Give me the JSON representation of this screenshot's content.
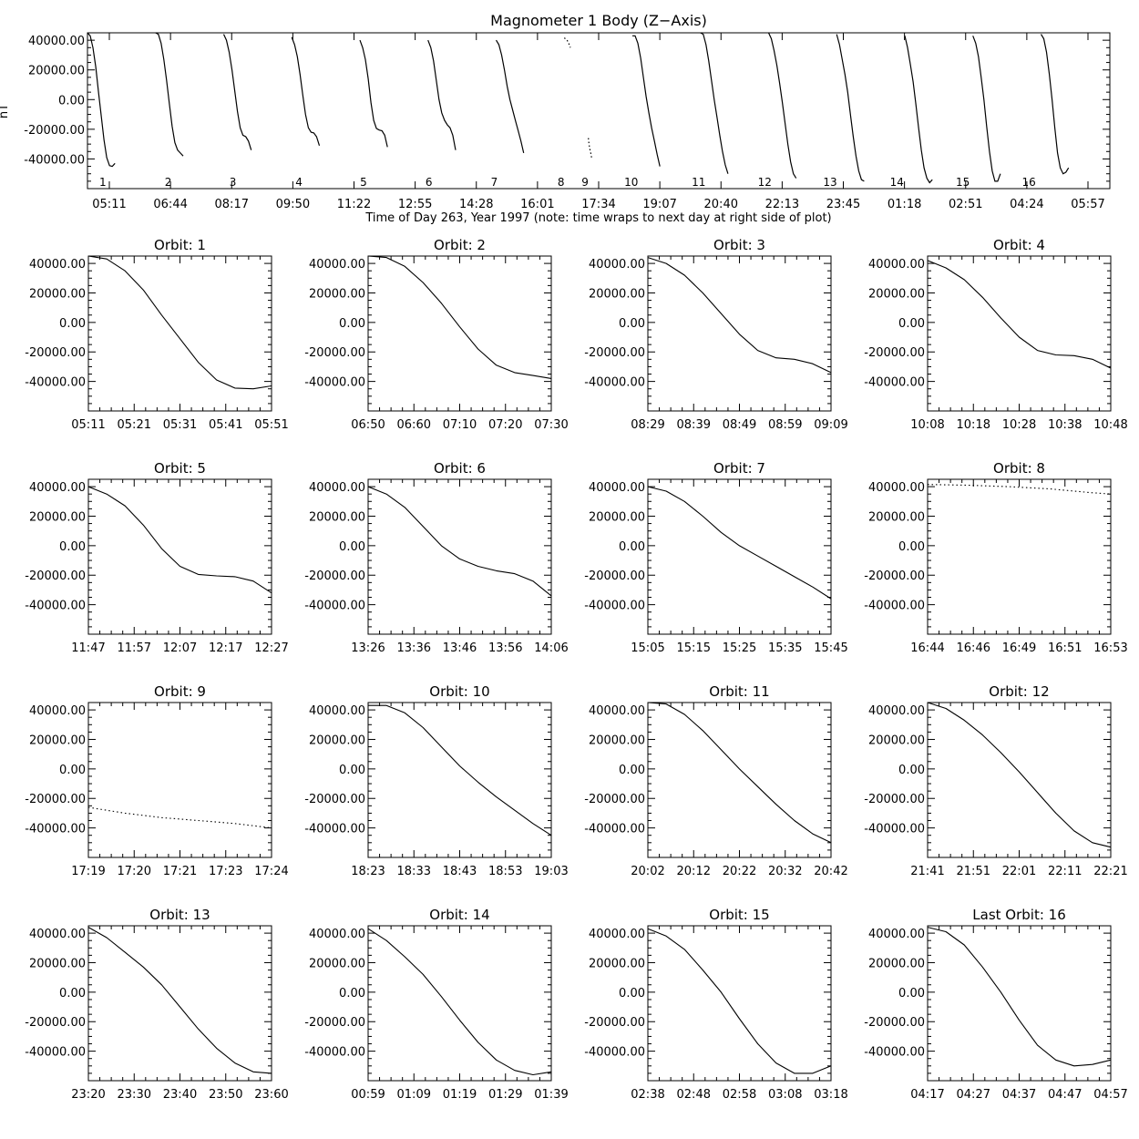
{
  "chart_data": [
    {
      "type": "line",
      "title": "Magnometer 1 Body (Z−Axis)",
      "ylabel": "nT",
      "xlabel": "Time of Day 263, Year 1997 (note: time wraps to next day at right side of plot)",
      "x_tick_labels": [
        "05:11",
        "06:44",
        "08:17",
        "09:50",
        "11:22",
        "12:55",
        "14:28",
        "16:01",
        "17:34",
        "19:07",
        "20:40",
        "22:13",
        "23:45",
        "01:18",
        "02:51",
        "04:24",
        "05:57"
      ],
      "y_tick_labels": [
        "40000.00",
        "20000.00",
        "0.00",
        "-20000.00",
        "-40000.00"
      ],
      "y_ticks": [
        40000,
        20000,
        0,
        -20000,
        -40000
      ],
      "ylim": [
        -60000,
        45000
      ],
      "x_range_minutes": [
        311,
        1797
      ],
      "orbit_labels": [
        {
          "label": "1",
          "x": 315
        },
        {
          "label": "2",
          "x": 410
        },
        {
          "label": "3",
          "x": 504
        },
        {
          "label": "4",
          "x": 600
        },
        {
          "label": "5",
          "x": 694
        },
        {
          "label": "6",
          "x": 789
        },
        {
          "label": "7",
          "x": 884
        },
        {
          "label": "8",
          "x": 981
        },
        {
          "label": "9",
          "x": 1016
        },
        {
          "label": "10",
          "x": 1078
        },
        {
          "label": "11",
          "x": 1176
        },
        {
          "label": "12",
          "x": 1272
        },
        {
          "label": "13",
          "x": 1367
        },
        {
          "label": "14",
          "x": 1464
        },
        {
          "label": "15",
          "x": 1560
        },
        {
          "label": "16",
          "x": 1656
        }
      ]
    },
    {
      "type": "line",
      "title": "Orbit:  1",
      "x_tick_labels": [
        "05:11",
        "05:21",
        "05:31",
        "05:41",
        "05:51"
      ],
      "xlim": [
        311,
        351
      ],
      "x": [
        311,
        315,
        319,
        323,
        327,
        331,
        335,
        339,
        343,
        347,
        351
      ],
      "y": [
        45000,
        43000,
        35000,
        22000,
        5000,
        -11000,
        -27000,
        -39000,
        -44500,
        -45000,
        -43000
      ]
    },
    {
      "type": "line",
      "title": "Orbit:  2",
      "x_tick_labels": [
        "06:50",
        "06:60",
        "07:10",
        "07:20",
        "07:30"
      ],
      "xlim": [
        410,
        450
      ],
      "x": [
        410,
        414,
        418,
        422,
        426,
        430,
        434,
        438,
        442,
        446,
        450
      ],
      "y": [
        45000,
        44000,
        38000,
        27000,
        13000,
        -3000,
        -18000,
        -29000,
        -34000,
        -36000,
        -38000
      ]
    },
    {
      "type": "line",
      "title": "Orbit:  3",
      "x_tick_labels": [
        "08:29",
        "08:39",
        "08:49",
        "08:59",
        "09:09"
      ],
      "xlim": [
        509,
        549
      ],
      "x": [
        509,
        513,
        517,
        521,
        525,
        529,
        533,
        537,
        541,
        545,
        549
      ],
      "y": [
        44000,
        40000,
        32000,
        20000,
        6000,
        -8000,
        -19000,
        -24000,
        -25000,
        -28000,
        -34000
      ]
    },
    {
      "type": "line",
      "title": "Orbit:  4",
      "x_tick_labels": [
        "10:08",
        "10:18",
        "10:28",
        "10:38",
        "10:48"
      ],
      "xlim": [
        608,
        648
      ],
      "x": [
        608,
        612,
        616,
        620,
        624,
        628,
        632,
        636,
        640,
        644,
        648
      ],
      "y": [
        42000,
        37000,
        29000,
        17000,
        3000,
        -10000,
        -19000,
        -22000,
        -22500,
        -25000,
        -31000
      ]
    },
    {
      "type": "line",
      "title": "Orbit:  5",
      "x_tick_labels": [
        "11:47",
        "11:57",
        "12:07",
        "12:17",
        "12:27"
      ],
      "xlim": [
        707,
        747
      ],
      "x": [
        707,
        711,
        715,
        719,
        723,
        727,
        731,
        735,
        739,
        743,
        747
      ],
      "y": [
        40000,
        35000,
        27000,
        14000,
        -2000,
        -14000,
        -19500,
        -20500,
        -21000,
        -24000,
        -32000
      ]
    },
    {
      "type": "line",
      "title": "Orbit:  6",
      "x_tick_labels": [
        "13:26",
        "13:36",
        "13:46",
        "13:56",
        "14:06"
      ],
      "xlim": [
        806,
        846
      ],
      "x": [
        806,
        810,
        814,
        818,
        822,
        826,
        830,
        834,
        838,
        842,
        846
      ],
      "y": [
        40000,
        35000,
        26000,
        13000,
        0,
        -9000,
        -14000,
        -17000,
        -19000,
        -24000,
        -34000
      ]
    },
    {
      "type": "line",
      "title": "Orbit:  7",
      "x_tick_labels": [
        "15:05",
        "15:15",
        "15:25",
        "15:35",
        "15:45"
      ],
      "xlim": [
        905,
        945
      ],
      "x": [
        905,
        909,
        913,
        917,
        921,
        925,
        929,
        933,
        937,
        941,
        945
      ],
      "y": [
        40000,
        37000,
        30000,
        20000,
        9000,
        0,
        -7000,
        -14000,
        -21000,
        -28000,
        -36000
      ]
    },
    {
      "type": "line",
      "title": "Orbit:  8",
      "dotted": true,
      "x_tick_labels": [
        "16:44",
        "16:46",
        "16:49",
        "16:51",
        "16:53"
      ],
      "xlim": [
        1004,
        1013
      ],
      "x": [
        1004,
        1006,
        1008,
        1010,
        1012,
        1013
      ],
      "y": [
        41500,
        41000,
        40000,
        38500,
        36000,
        35000
      ]
    },
    {
      "type": "line",
      "title": "Orbit:  9",
      "dotted": true,
      "x_tick_labels": [
        "17:19",
        "17:20",
        "17:21",
        "17:23",
        "17:24"
      ],
      "xlim": [
        1039,
        1044
      ],
      "x": [
        1039,
        1040,
        1041,
        1042,
        1043,
        1044
      ],
      "y": [
        -26000,
        -30000,
        -33000,
        -35000,
        -37000,
        -40000
      ]
    },
    {
      "type": "line",
      "title": "Orbit:  10",
      "x_tick_labels": [
        "18:23",
        "18:33",
        "18:43",
        "18:53",
        "19:03"
      ],
      "xlim": [
        1103,
        1143
      ],
      "x": [
        1103,
        1107,
        1111,
        1115,
        1119,
        1123,
        1127,
        1131,
        1135,
        1139,
        1143
      ],
      "y": [
        43000,
        43000,
        38000,
        28000,
        15000,
        2000,
        -9000,
        -19000,
        -28000,
        -37000,
        -45000
      ]
    },
    {
      "type": "line",
      "title": "Orbit:  11",
      "x_tick_labels": [
        "20:02",
        "20:12",
        "20:22",
        "20:32",
        "20:42"
      ],
      "xlim": [
        1202,
        1242
      ],
      "x": [
        1202,
        1206,
        1210,
        1214,
        1218,
        1222,
        1226,
        1230,
        1234,
        1238,
        1242
      ],
      "y": [
        45000,
        44000,
        37000,
        26000,
        13000,
        0,
        -12000,
        -24000,
        -35000,
        -44000,
        -50000
      ]
    },
    {
      "type": "line",
      "title": "Orbit:  12",
      "x_tick_labels": [
        "21:41",
        "21:51",
        "22:01",
        "22:11",
        "22:21"
      ],
      "xlim": [
        1301,
        1341
      ],
      "x": [
        1301,
        1305,
        1309,
        1313,
        1317,
        1321,
        1325,
        1329,
        1333,
        1337,
        1341
      ],
      "y": [
        45000,
        41000,
        33000,
        23000,
        11000,
        -2000,
        -16000,
        -30000,
        -42000,
        -50000,
        -53000
      ]
    },
    {
      "type": "line",
      "title": "Orbit:  13",
      "x_tick_labels": [
        "23:20",
        "23:30",
        "23:40",
        "23:50",
        "23:60"
      ],
      "xlim": [
        1400,
        1440
      ],
      "x": [
        1400,
        1404,
        1408,
        1412,
        1416,
        1420,
        1424,
        1428,
        1432,
        1436,
        1440
      ],
      "y": [
        44000,
        37000,
        27000,
        17000,
        5000,
        -10000,
        -25000,
        -38000,
        -48000,
        -54000,
        -55000
      ]
    },
    {
      "type": "line",
      "title": "Orbit:  14",
      "x_tick_labels": [
        "00:59",
        "01:09",
        "01:19",
        "01:29",
        "01:39"
      ],
      "xlim": [
        1499,
        1539
      ],
      "x": [
        1499,
        1503,
        1507,
        1511,
        1515,
        1519,
        1523,
        1527,
        1531,
        1535,
        1539
      ],
      "y": [
        43000,
        35000,
        24000,
        12000,
        -3000,
        -19000,
        -34000,
        -46000,
        -53000,
        -56000,
        -54000
      ]
    },
    {
      "type": "line",
      "title": "Orbit:  15",
      "x_tick_labels": [
        "02:38",
        "02:48",
        "02:58",
        "03:08",
        "03:18"
      ],
      "xlim": [
        1598,
        1638
      ],
      "x": [
        1598,
        1602,
        1606,
        1610,
        1614,
        1618,
        1622,
        1626,
        1630,
        1634,
        1638
      ],
      "y": [
        43000,
        38000,
        29000,
        15000,
        0,
        -18000,
        -35000,
        -48000,
        -55000,
        -55000,
        -50000
      ]
    },
    {
      "type": "line",
      "title": "Last Orbit:  16",
      "x_tick_labels": [
        "04:17",
        "04:27",
        "04:37",
        "04:47",
        "04:57"
      ],
      "xlim": [
        1697,
        1737
      ],
      "x": [
        1697,
        1701,
        1705,
        1709,
        1713,
        1717,
        1721,
        1725,
        1729,
        1733,
        1737
      ],
      "y": [
        44000,
        41000,
        32000,
        17000,
        0,
        -19000,
        -36000,
        -46000,
        -50000,
        -49000,
        -46000
      ]
    }
  ]
}
